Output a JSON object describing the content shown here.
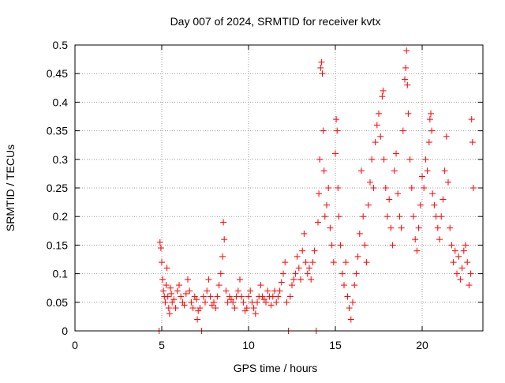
{
  "chart_data": {
    "type": "scatter",
    "title": "Day 007 of 2024, SRMTID for receiver kvtx",
    "xlabel": "GPS time / hours",
    "ylabel": "SRMTID / TECUs",
    "xlim": [
      0,
      23.5
    ],
    "ylim": [
      0,
      0.5
    ],
    "xticks": [
      0,
      5,
      10,
      15,
      20
    ],
    "xtick_labels": [
      "0",
      "5",
      "10",
      "15",
      "20"
    ],
    "yticks": [
      0,
      0.05,
      0.1,
      0.15,
      0.2,
      0.25,
      0.3,
      0.35,
      0.4,
      0.45,
      0.5
    ],
    "ytick_labels": [
      "0",
      "0.05",
      "0.1",
      "0.15",
      "0.2",
      "0.25",
      "0.3",
      "0.35",
      "0.4",
      "0.45",
      "0.5"
    ],
    "grid": true,
    "marker": "+",
    "color": "#ff0000",
    "series": [
      {
        "name": "SRMTID",
        "points": [
          [
            4.85,
            0.0
          ],
          [
            4.9,
            0.155
          ],
          [
            4.95,
            0.145
          ],
          [
            5.0,
            0.12
          ],
          [
            5.05,
            0.09
          ],
          [
            5.1,
            0.07
          ],
          [
            5.15,
            0.06
          ],
          [
            5.2,
            0.05
          ],
          [
            5.25,
            0.08
          ],
          [
            5.3,
            0.11
          ],
          [
            5.35,
            0.06
          ],
          [
            5.4,
            0.04
          ],
          [
            5.45,
            0.03
          ],
          [
            5.5,
            0.075
          ],
          [
            5.55,
            0.065
          ],
          [
            5.6,
            0.05
          ],
          [
            5.7,
            0.055
          ],
          [
            5.8,
            0.04
          ],
          [
            5.9,
            0.07
          ],
          [
            6.0,
            0.08
          ],
          [
            6.1,
            0.06
          ],
          [
            6.2,
            0.05
          ],
          [
            6.3,
            0.045
          ],
          [
            6.4,
            0.065
          ],
          [
            6.5,
            0.09
          ],
          [
            6.6,
            0.07
          ],
          [
            6.7,
            0.05
          ],
          [
            6.8,
            0.04
          ],
          [
            6.9,
            0.06
          ],
          [
            7.0,
            0.055
          ],
          [
            7.05,
            0.02
          ],
          [
            7.1,
            0.035
          ],
          [
            7.2,
            0.04
          ],
          [
            7.3,
            0.0
          ],
          [
            7.4,
            0.06
          ],
          [
            7.5,
            0.05
          ],
          [
            7.6,
            0.07
          ],
          [
            7.7,
            0.09
          ],
          [
            7.8,
            0.06
          ],
          [
            7.9,
            0.045
          ],
          [
            8.0,
            0.05
          ],
          [
            8.1,
            0.04
          ],
          [
            8.2,
            0.06
          ],
          [
            8.3,
            0.08
          ],
          [
            8.4,
            0.1
          ],
          [
            8.5,
            0.13
          ],
          [
            8.55,
            0.19
          ],
          [
            8.6,
            0.16
          ],
          [
            8.7,
            0.07
          ],
          [
            8.8,
            0.05
          ],
          [
            8.9,
            0.06
          ],
          [
            9.0,
            0.055
          ],
          [
            9.1,
            0.05
          ],
          [
            9.2,
            0.04
          ],
          [
            9.3,
            0.06
          ],
          [
            9.4,
            0.07
          ],
          [
            9.5,
            0.09
          ],
          [
            9.6,
            0.06
          ],
          [
            9.7,
            0.05
          ],
          [
            9.8,
            0.035
          ],
          [
            9.9,
            0.04
          ],
          [
            10.0,
            0.06
          ],
          [
            10.1,
            0.07
          ],
          [
            10.2,
            0.05
          ],
          [
            10.3,
            0.04
          ],
          [
            10.4,
            0.03
          ],
          [
            10.5,
            0.05
          ],
          [
            10.6,
            0.06
          ],
          [
            10.7,
            0.08
          ],
          [
            10.8,
            0.06
          ],
          [
            10.9,
            0.055
          ],
          [
            11.0,
            0.05
          ],
          [
            11.1,
            0.07
          ],
          [
            11.2,
            0.06
          ],
          [
            11.3,
            0.045
          ],
          [
            11.4,
            0.06
          ],
          [
            11.5,
            0.07
          ],
          [
            11.6,
            0.05
          ],
          [
            11.7,
            0.06
          ],
          [
            11.8,
            0.07
          ],
          [
            11.9,
            0.085
          ],
          [
            12.0,
            0.1
          ],
          [
            12.1,
            0.12
          ],
          [
            12.2,
            0.05
          ],
          [
            12.3,
            0.0
          ],
          [
            12.4,
            0.06
          ],
          [
            12.5,
            0.08
          ],
          [
            12.6,
            0.09
          ],
          [
            12.7,
            0.1
          ],
          [
            12.8,
            0.13
          ],
          [
            12.9,
            0.11
          ],
          [
            13.0,
            0.09
          ],
          [
            13.1,
            0.14
          ],
          [
            13.2,
            0.17
          ],
          [
            13.3,
            0.12
          ],
          [
            13.4,
            0.1
          ],
          [
            13.5,
            0.11
          ],
          [
            13.6,
            0.09
          ],
          [
            13.7,
            0.12
          ],
          [
            13.8,
            0.14
          ],
          [
            13.9,
            0.0
          ],
          [
            14.0,
            0.19
          ],
          [
            14.05,
            0.24
          ],
          [
            14.1,
            0.3
          ],
          [
            14.15,
            0.46
          ],
          [
            14.2,
            0.47
          ],
          [
            14.25,
            0.45
          ],
          [
            14.3,
            0.35
          ],
          [
            14.35,
            0.28
          ],
          [
            14.4,
            0.2
          ],
          [
            14.5,
            0.22
          ],
          [
            14.6,
            0.25
          ],
          [
            14.7,
            0.18
          ],
          [
            14.8,
            0.15
          ],
          [
            14.9,
            0.12
          ],
          [
            15.0,
            0.31
          ],
          [
            15.05,
            0.37
          ],
          [
            15.1,
            0.35
          ],
          [
            15.15,
            0.25
          ],
          [
            15.2,
            0.2
          ],
          [
            15.3,
            0.15
          ],
          [
            15.4,
            0.1
          ],
          [
            15.5,
            0.08
          ],
          [
            15.6,
            0.12
          ],
          [
            15.7,
            0.06
          ],
          [
            15.8,
            0.04
          ],
          [
            15.9,
            0.02
          ],
          [
            16.0,
            0.05
          ],
          [
            16.1,
            0.08
          ],
          [
            16.2,
            0.1
          ],
          [
            16.3,
            0.13
          ],
          [
            16.4,
            0.17
          ],
          [
            16.5,
            0.28
          ],
          [
            16.6,
            0.2
          ],
          [
            16.7,
            0.15
          ],
          [
            16.8,
            0.12
          ],
          [
            16.9,
            0.22
          ],
          [
            17.0,
            0.26
          ],
          [
            17.1,
            0.3
          ],
          [
            17.2,
            0.25
          ],
          [
            17.3,
            0.33
          ],
          [
            17.4,
            0.36
          ],
          [
            17.5,
            0.38
          ],
          [
            17.6,
            0.34
          ],
          [
            17.7,
            0.41
          ],
          [
            17.75,
            0.42
          ],
          [
            17.8,
            0.3
          ],
          [
            17.9,
            0.25
          ],
          [
            18.0,
            0.2
          ],
          [
            18.1,
            0.23
          ],
          [
            18.2,
            0.18
          ],
          [
            18.3,
            0.15
          ],
          [
            18.4,
            0.28
          ],
          [
            18.5,
            0.31
          ],
          [
            18.6,
            0.24
          ],
          [
            18.7,
            0.2
          ],
          [
            18.8,
            0.18
          ],
          [
            18.9,
            0.35
          ],
          [
            19.0,
            0.44
          ],
          [
            19.05,
            0.46
          ],
          [
            19.1,
            0.49
          ],
          [
            19.15,
            0.43
          ],
          [
            19.2,
            0.38
          ],
          [
            19.3,
            0.3
          ],
          [
            19.4,
            0.25
          ],
          [
            19.5,
            0.2
          ],
          [
            19.6,
            0.16
          ],
          [
            19.7,
            0.14
          ],
          [
            19.8,
            0.18
          ],
          [
            19.9,
            0.22
          ],
          [
            20.0,
            0.27
          ],
          [
            20.1,
            0.25
          ],
          [
            20.2,
            0.3
          ],
          [
            20.3,
            0.28
          ],
          [
            20.4,
            0.33
          ],
          [
            20.45,
            0.37
          ],
          [
            20.5,
            0.38
          ],
          [
            20.55,
            0.35
          ],
          [
            20.6,
            0.24
          ],
          [
            20.7,
            0.22
          ],
          [
            20.8,
            0.2
          ],
          [
            20.9,
            0.18
          ],
          [
            21.0,
            0.16
          ],
          [
            21.1,
            0.2
          ],
          [
            21.2,
            0.23
          ],
          [
            21.3,
            0.28
          ],
          [
            21.4,
            0.34
          ],
          [
            21.5,
            0.26
          ],
          [
            21.6,
            0.18
          ],
          [
            21.7,
            0.15
          ],
          [
            21.8,
            0.12
          ],
          [
            21.9,
            0.14
          ],
          [
            22.0,
            0.1
          ],
          [
            22.1,
            0.13
          ],
          [
            22.2,
            0.09
          ],
          [
            22.3,
            0.11
          ],
          [
            22.4,
            0.14
          ],
          [
            22.5,
            0.15
          ],
          [
            22.6,
            0.12
          ],
          [
            22.7,
            0.08
          ],
          [
            22.8,
            0.1
          ],
          [
            22.85,
            0.37
          ],
          [
            22.9,
            0.33
          ],
          [
            22.95,
            0.25
          ]
        ]
      }
    ]
  }
}
